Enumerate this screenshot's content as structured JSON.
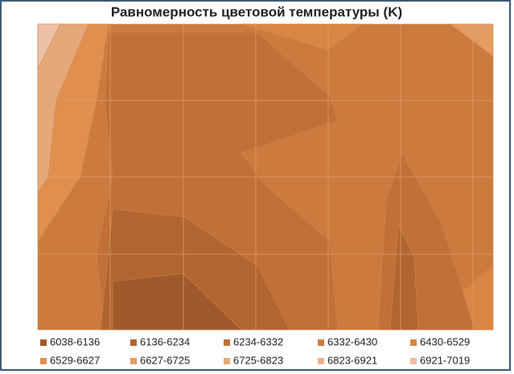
{
  "chart_data": {
    "type": "contour",
    "title": "Равномерность цветовой температуры (K)",
    "series": [
      {
        "name": "6038-6136",
        "color": "#a0592a"
      },
      {
        "name": "6136-6234",
        "color": "#b2652e"
      },
      {
        "name": "6234-6332",
        "color": "#c17038"
      },
      {
        "name": "6332-6430",
        "color": "#cc7a3e"
      },
      {
        "name": "6430-6529",
        "color": "#d98644"
      },
      {
        "name": "6529-6627",
        "color": "#e08f4e"
      },
      {
        "name": "6627-6725",
        "color": "#e49c63"
      },
      {
        "name": "6725-6823",
        "color": "#e6a879"
      },
      {
        "name": "6823-6921",
        "color": "#e8b48e"
      },
      {
        "name": "6921-7019",
        "color": "#ebc0a4"
      }
    ]
  }
}
